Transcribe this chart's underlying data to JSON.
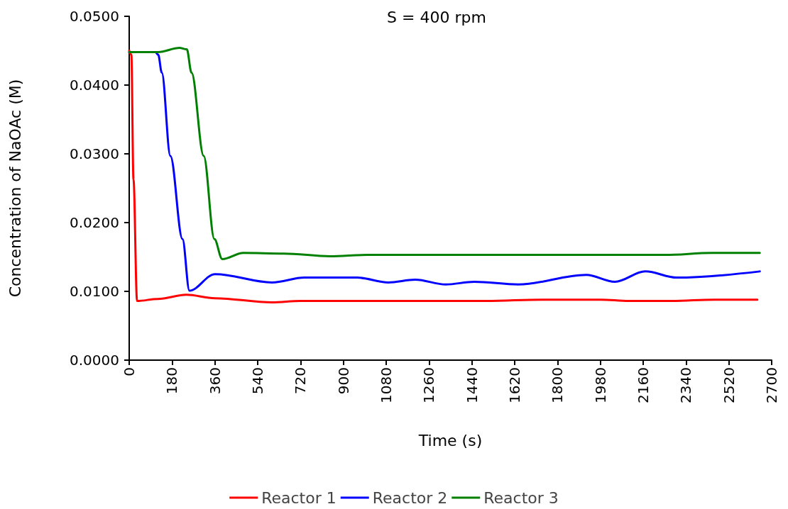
{
  "chart_data": {
    "type": "line",
    "title": "S = 400 rpm",
    "xlabel": "Time (s)",
    "ylabel": "Concentration of NaOAc (M)",
    "xlim": [
      0,
      2700
    ],
    "xticks": [
      0,
      180,
      360,
      540,
      720,
      900,
      1080,
      1260,
      1440,
      1620,
      1800,
      1980,
      2160,
      2340,
      2520,
      2700
    ],
    "ylim": [
      0,
      0.05
    ],
    "yticks": [
      {
        "value": 0,
        "label": "0.0000"
      },
      {
        "value": 0.01,
        "label": "0.0100"
      },
      {
        "value": 0.02,
        "label": "0.0200"
      },
      {
        "value": 0.03,
        "label": "0.0300"
      },
      {
        "value": 0.04,
        "label": "0.0400"
      },
      {
        "value": 0.05,
        "label": "0.0500"
      }
    ],
    "grid": false,
    "legend": "bottom",
    "marker": "none",
    "line_style": "solid",
    "series": [
      {
        "name": "Reactor 1",
        "color": "#ff0000",
        "x": [
          0,
          9,
          18,
          33,
          120,
          240,
          360,
          600,
          720,
          1500,
          1740,
          1980,
          2100,
          2280,
          2460,
          2640
        ],
        "values": [
          0.045,
          0.0444,
          0.0263,
          0.0086,
          0.0089,
          0.0095,
          0.009,
          0.0084,
          0.0086,
          0.0086,
          0.0088,
          0.0088,
          0.0086,
          0.0086,
          0.0088,
          0.0088
        ]
      },
      {
        "name": "Reactor 2",
        "color": "#0000ff",
        "x": [
          0,
          110,
          122,
          137,
          173,
          224,
          253,
          361,
          600,
          737,
          958,
          1089,
          1202,
          1330,
          1450,
          1635,
          1921,
          2041,
          2169,
          2302,
          2650
        ],
        "values": [
          0.0448,
          0.0448,
          0.0444,
          0.0418,
          0.0297,
          0.0176,
          0.0101,
          0.0125,
          0.0113,
          0.012,
          0.012,
          0.0113,
          0.0117,
          0.011,
          0.0114,
          0.011,
          0.0124,
          0.0114,
          0.0129,
          0.012,
          0.0129
        ]
      },
      {
        "name": "Reactor 3",
        "color": "#008000",
        "x": [
          0,
          122,
          212,
          242,
          262,
          313,
          358,
          391,
          480,
          650,
          844,
          1000,
          2250,
          2450,
          2650
        ],
        "values": [
          0.0448,
          0.0448,
          0.0454,
          0.0452,
          0.0418,
          0.0297,
          0.0176,
          0.0147,
          0.0156,
          0.0155,
          0.0151,
          0.0153,
          0.0153,
          0.0156,
          0.0156
        ]
      }
    ]
  }
}
